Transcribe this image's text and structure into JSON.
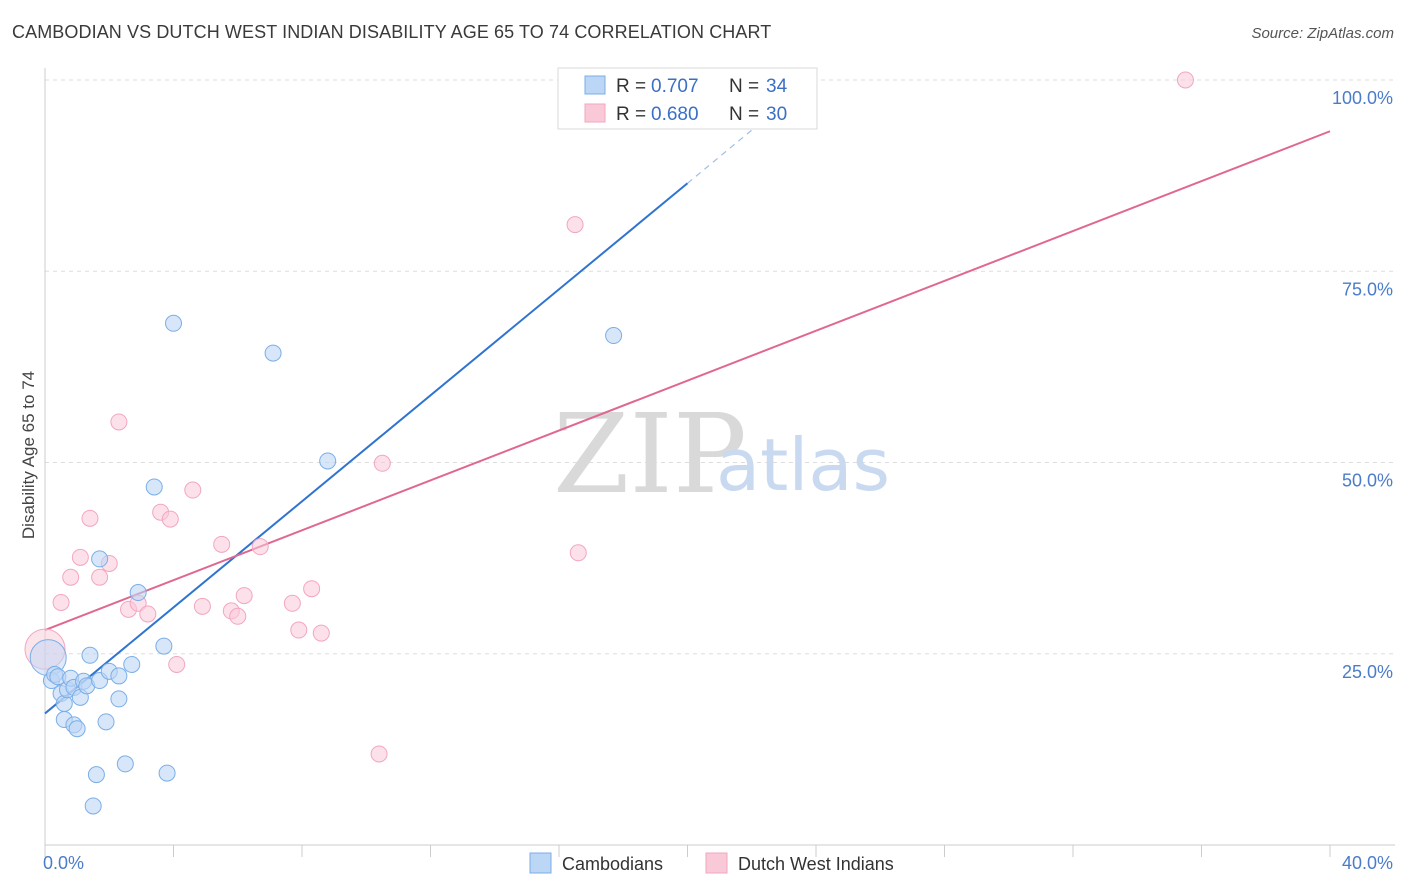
{
  "title": "CAMBODIAN VS DUTCH WEST INDIAN DISABILITY AGE 65 TO 74 CORRELATION CHART",
  "source": "Source: ZipAtlas.com",
  "watermark": {
    "zip": "ZIP",
    "atlas": "atlas"
  },
  "colors": {
    "blue": "#7aaee8",
    "blue_line": "#2f74d0",
    "pink": "#f2a6bf",
    "pink_line": "#e06890",
    "tick": "#4a7cc9"
  },
  "chart_data": {
    "type": "scatter",
    "title": "CAMBODIAN VS DUTCH WEST INDIAN DISABILITY AGE 65 TO 74 CORRELATION CHART",
    "xlabel": "",
    "ylabel": "Disability Age 65 to 74",
    "xlim": [
      0,
      40
    ],
    "ylim": [
      0,
      100
    ],
    "x_tick_labels": [
      "0.0%",
      "40.0%"
    ],
    "y_ticks": [
      25,
      50,
      75,
      100
    ],
    "y_tick_labels": [
      "25.0%",
      "50.0%",
      "75.0%",
      "100.0%"
    ],
    "legend": [
      {
        "name": "Cambodians",
        "r_label": "R =",
        "r": "0.707",
        "n_label": "N =",
        "n": "34"
      },
      {
        "name": "Dutch West Indians",
        "r_label": "R =",
        "r": "0.680",
        "n_label": "N =",
        "n": "30"
      }
    ],
    "series": [
      {
        "name": "Cambodians",
        "points": [
          [
            0.1,
            24.5
          ],
          [
            0.2,
            21.5
          ],
          [
            0.3,
            22.3
          ],
          [
            0.4,
            22.0
          ],
          [
            0.5,
            19.8
          ],
          [
            0.6,
            18.5
          ],
          [
            0.6,
            16.4
          ],
          [
            0.7,
            20.3
          ],
          [
            0.8,
            21.8
          ],
          [
            0.9,
            20.6
          ],
          [
            0.9,
            15.7
          ],
          [
            1.0,
            15.2
          ],
          [
            1.1,
            19.3
          ],
          [
            1.2,
            21.4
          ],
          [
            1.3,
            20.8
          ],
          [
            1.4,
            24.8
          ],
          [
            1.5,
            5.1
          ],
          [
            1.6,
            9.2
          ],
          [
            1.7,
            21.5
          ],
          [
            1.7,
            37.4
          ],
          [
            1.9,
            16.1
          ],
          [
            2.0,
            22.7
          ],
          [
            2.3,
            22.1
          ],
          [
            2.3,
            19.1
          ],
          [
            2.5,
            10.6
          ],
          [
            2.7,
            23.6
          ],
          [
            2.9,
            33.0
          ],
          [
            3.4,
            46.8
          ],
          [
            3.7,
            26.0
          ],
          [
            3.8,
            9.4
          ],
          [
            4.0,
            68.2
          ],
          [
            7.1,
            64.3
          ],
          [
            8.8,
            50.2
          ],
          [
            17.7,
            66.6
          ]
        ],
        "trend": {
          "x": [
            0,
            20
          ],
          "y": [
            17.2,
            86.5
          ],
          "dashed_to": [
            24,
            100.4
          ]
        }
      },
      {
        "name": "Dutch West Indians",
        "points": [
          [
            0.0,
            25.6
          ],
          [
            0.5,
            31.7
          ],
          [
            0.8,
            35.0
          ],
          [
            1.1,
            37.6
          ],
          [
            1.4,
            42.7
          ],
          [
            1.7,
            35.0
          ],
          [
            2.0,
            36.8
          ],
          [
            2.3,
            55.3
          ],
          [
            2.6,
            30.8
          ],
          [
            2.9,
            31.6
          ],
          [
            3.2,
            30.2
          ],
          [
            3.6,
            43.5
          ],
          [
            3.9,
            42.6
          ],
          [
            4.1,
            23.6
          ],
          [
            4.6,
            46.4
          ],
          [
            4.9,
            31.2
          ],
          [
            5.5,
            39.3
          ],
          [
            5.8,
            30.6
          ],
          [
            6.0,
            29.9
          ],
          [
            6.2,
            32.6
          ],
          [
            6.7,
            39.0
          ],
          [
            7.7,
            31.6
          ],
          [
            7.9,
            28.1
          ],
          [
            8.3,
            33.5
          ],
          [
            8.6,
            27.7
          ],
          [
            10.5,
            49.9
          ],
          [
            10.4,
            11.9
          ],
          [
            16.5,
            81.1
          ],
          [
            16.6,
            38.2
          ],
          [
            35.5,
            100.0
          ]
        ],
        "trend": {
          "x": [
            0,
            40
          ],
          "y": [
            28.1,
            93.3
          ]
        }
      }
    ]
  }
}
